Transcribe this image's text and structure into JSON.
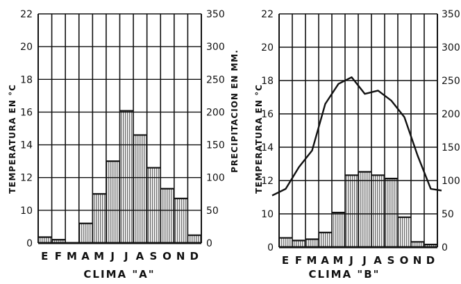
{
  "chart_data": [
    {
      "type": "bar",
      "title": "CLIMA \"A\"",
      "categories": [
        "E",
        "F",
        "M",
        "A",
        "M",
        "J",
        "J",
        "A",
        "S",
        "O",
        "N",
        "D"
      ],
      "ylabel_left": "TEMPERATURA EN °C",
      "ylabel_right": "PRECIPITACION EN MM.",
      "ylim_left": [
        0,
        22
      ],
      "ylim_right": [
        0,
        350
      ],
      "left_ticks": [
        0,
        10,
        12,
        14,
        16,
        18,
        20,
        22
      ],
      "right_ticks": [
        0,
        50,
        100,
        150,
        200,
        250,
        300,
        350
      ],
      "series": [
        {
          "values": [
            9,
            5,
            0,
            30,
            75,
            125,
            202,
            165,
            115,
            83,
            68,
            12
          ]
        }
      ]
    },
    {
      "type": "bar+line",
      "title": "CLIMA \"B\"",
      "categories": [
        "E",
        "F",
        "M",
        "A",
        "M",
        "J",
        "J",
        "A",
        "S",
        "O",
        "N",
        "D"
      ],
      "ylabel_left": "TEMPERATURA EN °C",
      "ylim_left": [
        0,
        22
      ],
      "ylim_right": [
        0,
        350
      ],
      "left_ticks": [
        0,
        10,
        12,
        14,
        16,
        18,
        20,
        22
      ],
      "right_ticks": [
        0,
        50,
        100,
        150,
        200,
        250,
        300,
        350
      ],
      "series": [
        {
          "type": "bar",
          "values": [
            14,
            10,
            12,
            22,
            52,
            108,
            113,
            108,
            103,
            45,
            8,
            4
          ]
        },
        {
          "type": "line",
          "values": [
            11.5,
            12.8,
            13.8,
            16.6,
            17.8,
            18.2,
            17.2,
            17.4,
            16.8,
            15.8,
            13.5,
            11.5
          ]
        }
      ]
    }
  ]
}
